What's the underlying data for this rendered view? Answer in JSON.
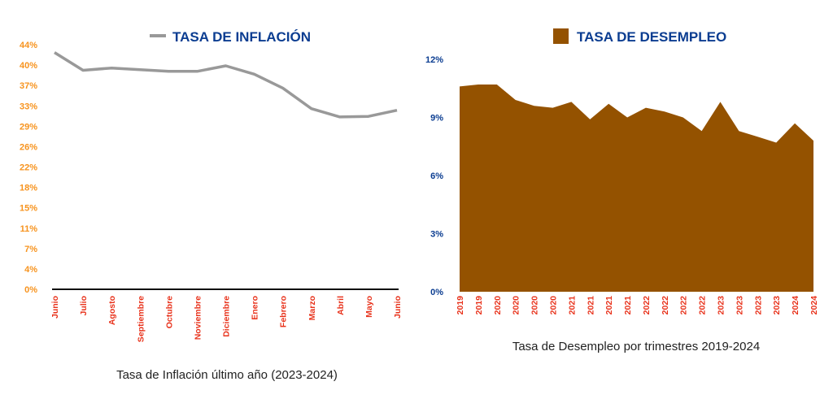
{
  "colors": {
    "inflation_line": "#999999",
    "inflation_y_ticks": "#f7931e",
    "x_ticks": "#e8311a",
    "legend_title": "#0b3d91",
    "unemployment_fill": "#945200",
    "unemployment_y_ticks": "#0b3d91",
    "axis": "#111111",
    "caption": "#222222"
  },
  "chart_data": [
    {
      "type": "line",
      "legend": "TASA DE INFLACIÓN",
      "legend_placement": "top-center",
      "caption": "Tasa de Inflación último año (2023-2024)",
      "categories": [
        "Junio",
        "Julio",
        "Agosto",
        "Septiembre",
        "Octubre",
        "Noviembre",
        "Diciembre",
        "Enero",
        "Febrero",
        "Marzo",
        "Abril",
        "Mayo",
        "Junio"
      ],
      "series": [
        {
          "name": "TASA DE INFLACIÓN",
          "values": [
            42.6,
            39.4,
            39.8,
            39.5,
            39.2,
            39.2,
            40.2,
            38.7,
            36.2,
            32.5,
            31.0,
            31.1,
            32.2
          ]
        }
      ],
      "y_ticks": [
        "0%",
        "4%",
        "7%",
        "11%",
        "15%",
        "18%",
        "22%",
        "26%",
        "29%",
        "33%",
        "37%",
        "40%",
        "44%"
      ],
      "ylim": [
        0,
        44
      ],
      "grid": false
    },
    {
      "type": "area",
      "legend": "TASA DE DESEMPLEO",
      "legend_placement": "top-center",
      "caption": "Tasa de Desempleo por trimestres 2019-2024",
      "categories": [
        "2019",
        "2019",
        "2020",
        "2020",
        "2020",
        "2020",
        "2021",
        "2021",
        "2021",
        "2021",
        "2022",
        "2022",
        "2022",
        "2022",
        "2023",
        "2023",
        "2023",
        "2023",
        "2024",
        "2024"
      ],
      "series": [
        {
          "name": "TASA DE DESEMPLEO",
          "values": [
            10.6,
            10.7,
            10.7,
            9.9,
            9.6,
            9.5,
            9.8,
            8.9,
            9.7,
            9.0,
            9.5,
            9.3,
            9.0,
            8.3,
            9.8,
            8.3,
            8.0,
            7.7,
            8.7,
            7.8
          ]
        }
      ],
      "y_ticks": [
        "0%",
        "3%",
        "6%",
        "9%",
        "12%"
      ],
      "ylim": [
        0,
        12
      ],
      "grid": false
    }
  ]
}
